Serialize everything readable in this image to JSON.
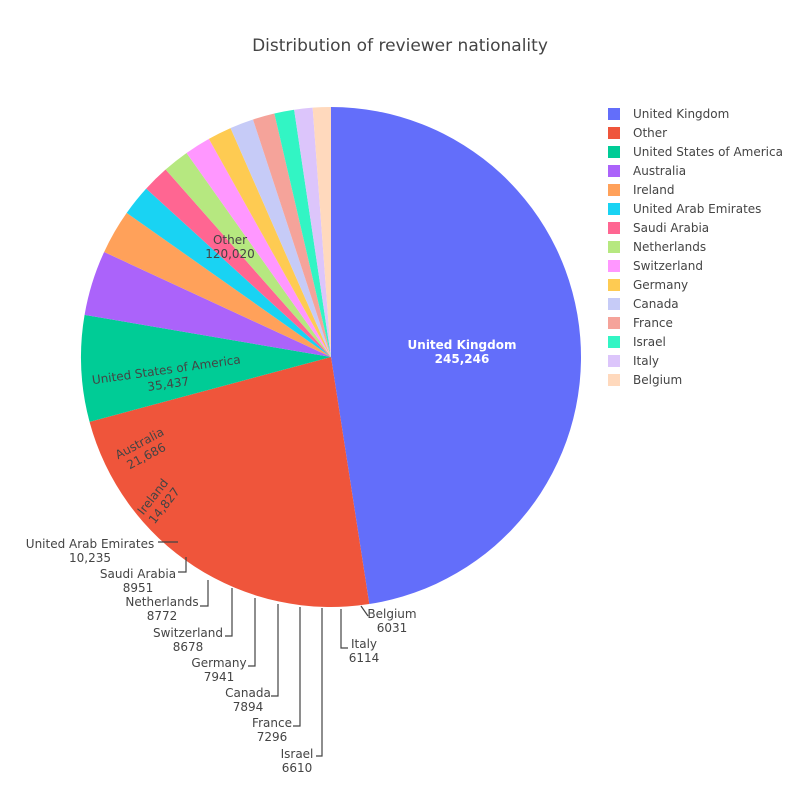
{
  "chart_data": {
    "type": "pie",
    "title": "Distribution of reviewer nationality",
    "legend_position": "top-right",
    "direction": "clockwise",
    "slices": [
      {
        "label": "United Kingdom",
        "value": 245246,
        "value_text": "245,246",
        "color": "#636efa"
      },
      {
        "label": "Other",
        "value": 120020,
        "value_text": "120,020",
        "color": "#EF553B"
      },
      {
        "label": "United States of America",
        "value": 35437,
        "value_text": "35,437",
        "color": "#00cc96"
      },
      {
        "label": "Australia",
        "value": 21686,
        "value_text": "21,686",
        "color": "#ab63fa"
      },
      {
        "label": "Ireland",
        "value": 14827,
        "value_text": "14,827",
        "color": "#FFA15A"
      },
      {
        "label": "United Arab Emirates",
        "value": 10235,
        "value_text": "10,235",
        "color": "#19d3f3"
      },
      {
        "label": "Saudi Arabia",
        "value": 8951,
        "value_text": "8951",
        "color": "#FF6692"
      },
      {
        "label": "Netherlands",
        "value": 8772,
        "value_text": "8772",
        "color": "#B6E880"
      },
      {
        "label": "Switzerland",
        "value": 8678,
        "value_text": "8678",
        "color": "#FF97FF"
      },
      {
        "label": "Germany",
        "value": 7941,
        "value_text": "7941",
        "color": "#FECB52"
      },
      {
        "label": "Canada",
        "value": 7894,
        "value_text": "7894",
        "color": "#c6cbf7"
      },
      {
        "label": "France",
        "value": 7296,
        "value_text": "7296",
        "color": "#f5a39a"
      },
      {
        "label": "Israel",
        "value": 6610,
        "value_text": "6610",
        "color": "#32f5c4"
      },
      {
        "label": "Italy",
        "value": 6114,
        "value_text": "6114",
        "color": "#dcc5fb"
      },
      {
        "label": "Belgium",
        "value": 6031,
        "value_text": "6031",
        "color": "#ffd9bd"
      }
    ]
  }
}
